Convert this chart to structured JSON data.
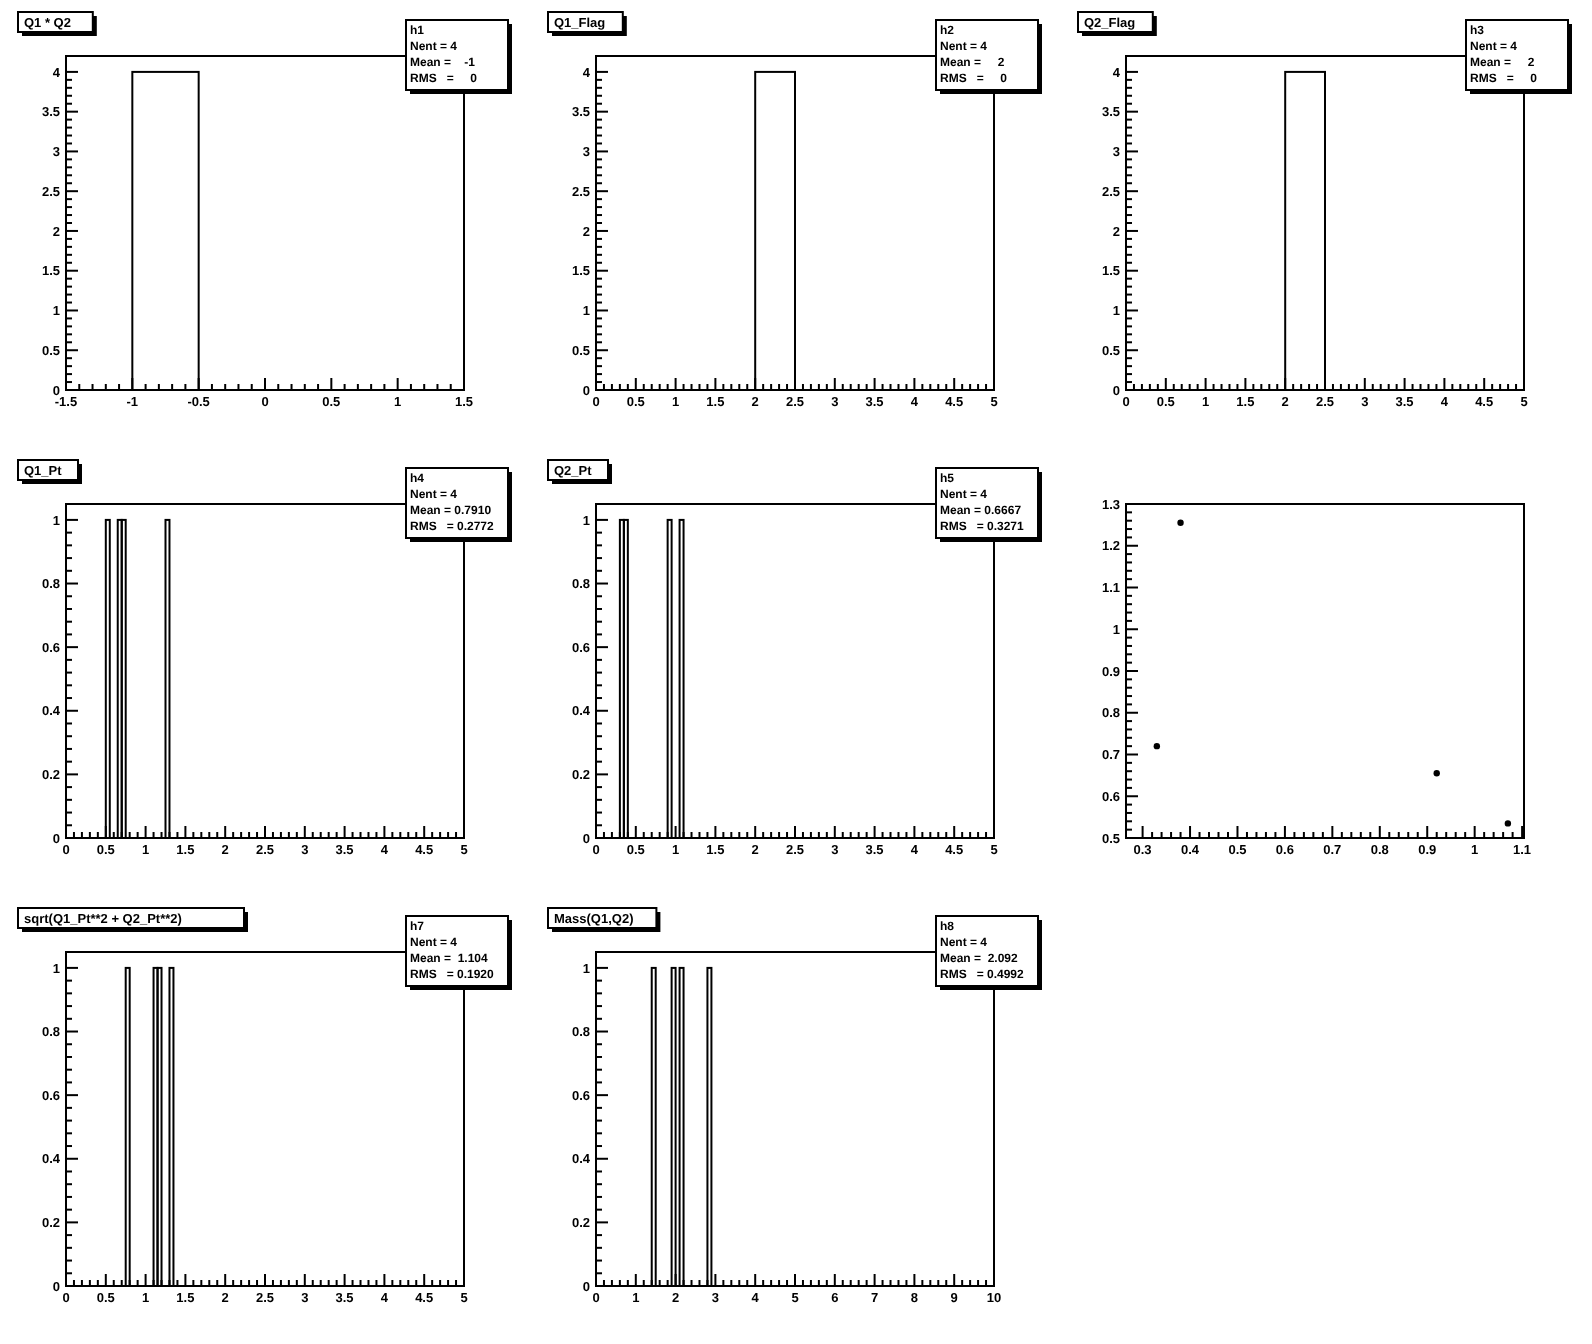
{
  "chart_data": [
    {
      "type": "histogram",
      "title": "Q1 * Q2",
      "bins": [
        -1.5,
        -1,
        -0.5,
        0,
        0.5,
        1,
        1.5
      ],
      "values": [
        0,
        4,
        0,
        0,
        0,
        0
      ],
      "xlim": [
        -1.5,
        1.5
      ],
      "xticks": [
        -1.5,
        -1,
        -0.5,
        0,
        0.5,
        1,
        1.5
      ],
      "ylim": [
        0,
        4.2
      ],
      "yticks": [
        0,
        0.5,
        1,
        1.5,
        2,
        2.5,
        3,
        3.5,
        4
      ],
      "annotations": [
        "h1",
        "Nent = 4",
        "Mean =    -1",
        "RMS   =     0"
      ]
    },
    {
      "type": "histogram",
      "title": "Q1_Flag",
      "bins": [
        0,
        0.5,
        1,
        1.5,
        2,
        2.5,
        3,
        3.5,
        4,
        4.5,
        5
      ],
      "values": [
        0,
        0,
        0,
        0,
        4,
        0,
        0,
        0,
        0,
        0
      ],
      "xlim": [
        0,
        5
      ],
      "xticks": [
        0,
        0.5,
        1,
        1.5,
        2,
        2.5,
        3,
        3.5,
        4,
        4.5,
        5
      ],
      "ylim": [
        0,
        4.2
      ],
      "yticks": [
        0,
        0.5,
        1,
        1.5,
        2,
        2.5,
        3,
        3.5,
        4
      ],
      "annotations": [
        "h2",
        "Nent = 4",
        "Mean =     2",
        "RMS   =     0"
      ]
    },
    {
      "type": "histogram",
      "title": "Q2_Flag",
      "bins": [
        0,
        0.5,
        1,
        1.5,
        2,
        2.5,
        3,
        3.5,
        4,
        4.5,
        5
      ],
      "values": [
        0,
        0,
        0,
        0,
        4,
        0,
        0,
        0,
        0,
        0
      ],
      "xlim": [
        0,
        5
      ],
      "xticks": [
        0,
        0.5,
        1,
        1.5,
        2,
        2.5,
        3,
        3.5,
        4,
        4.5,
        5
      ],
      "ylim": [
        0,
        4.2
      ],
      "yticks": [
        0,
        0.5,
        1,
        1.5,
        2,
        2.5,
        3,
        3.5,
        4
      ],
      "annotations": [
        "h3",
        "Nent = 4",
        "Mean =     2",
        "RMS   =     0"
      ]
    },
    {
      "type": "histogram",
      "title": "Q1_Pt",
      "bins": [
        0.5,
        0.55,
        0.65,
        0.7,
        0.75,
        1.25,
        1.3
      ],
      "values": [
        1,
        0,
        1,
        1,
        0,
        1
      ],
      "xlim": [
        0,
        5
      ],
      "xticks": [
        0,
        0.5,
        1,
        1.5,
        2,
        2.5,
        3,
        3.5,
        4,
        4.5,
        5
      ],
      "ylim": [
        0,
        1.05
      ],
      "yticks": [
        0,
        0.2,
        0.4,
        0.6,
        0.8,
        1
      ],
      "annotations": [
        "h4",
        "Nent = 4",
        "Mean = 0.7910",
        "RMS   = 0.2772"
      ]
    },
    {
      "type": "histogram",
      "title": "Q2_Pt",
      "bins": [
        0.3,
        0.35,
        0.4,
        0.9,
        0.95,
        1.05,
        1.1
      ],
      "values": [
        1,
        1,
        0,
        1,
        0,
        1
      ],
      "xlim": [
        0,
        5
      ],
      "xticks": [
        0,
        0.5,
        1,
        1.5,
        2,
        2.5,
        3,
        3.5,
        4,
        4.5,
        5
      ],
      "ylim": [
        0,
        1.05
      ],
      "yticks": [
        0,
        0.2,
        0.4,
        0.6,
        0.8,
        1
      ],
      "annotations": [
        "h5",
        "Nent = 4",
        "Mean = 0.6667",
        "RMS   = 0.3271"
      ]
    },
    {
      "type": "scatter",
      "x": [
        0.33,
        0.38,
        0.92,
        1.07
      ],
      "values": [
        0.72,
        1.255,
        0.655,
        0.535
      ],
      "xlim": [
        0.265,
        1.104
      ],
      "xticks": [
        0.3,
        0.4,
        0.5,
        0.6,
        0.7,
        0.8,
        0.9,
        1,
        1.1
      ],
      "ylim": [
        0.5,
        1.3
      ],
      "yticks": [
        0.5,
        0.6,
        0.7,
        0.8,
        0.9,
        1,
        1.1,
        1.2,
        1.3
      ]
    },
    {
      "type": "histogram",
      "title": "sqrt(Q1_Pt**2 + Q2_Pt**2)",
      "bins": [
        0.75,
        0.8,
        1.1,
        1.15,
        1.2,
        1.3,
        1.35
      ],
      "values": [
        1,
        0,
        1,
        1,
        0,
        1
      ],
      "xlim": [
        0,
        5
      ],
      "xticks": [
        0,
        0.5,
        1,
        1.5,
        2,
        2.5,
        3,
        3.5,
        4,
        4.5,
        5
      ],
      "ylim": [
        0,
        1.05
      ],
      "yticks": [
        0,
        0.2,
        0.4,
        0.6,
        0.8,
        1
      ],
      "annotations": [
        "h7",
        "Nent = 4",
        "Mean =  1.104",
        "RMS   = 0.1920"
      ]
    },
    {
      "type": "histogram",
      "title": "Mass(Q1,Q2)",
      "bins": [
        1.4,
        1.5,
        1.9,
        2,
        2.1,
        2.2,
        2.8,
        2.9
      ],
      "values": [
        1,
        0,
        1,
        0,
        1,
        0,
        1
      ],
      "xlim": [
        0,
        10
      ],
      "xticks": [
        0,
        1,
        2,
        3,
        4,
        5,
        6,
        7,
        8,
        9,
        10
      ],
      "ylim": [
        0,
        1.05
      ],
      "yticks": [
        0,
        0.2,
        0.4,
        0.6,
        0.8,
        1
      ],
      "annotations": [
        "h8",
        "Nent = 4",
        "Mean =  2.092",
        "RMS   = 0.4992"
      ]
    }
  ]
}
